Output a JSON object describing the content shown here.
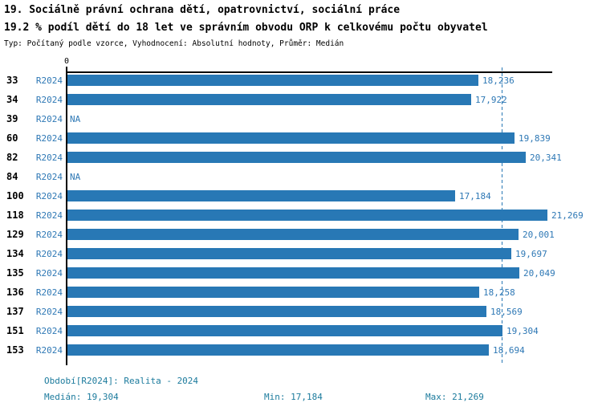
{
  "header": {
    "title_line1": "19. Sociálně právní ochrana dětí, opatrovnictví, sociální práce",
    "title_line2": "19.2 % podíl dětí do 18 let ve správním obvodu ORP k celkovému počtu obyvatel",
    "subtitle": "Typ: Počítaný podle vzorce, Vyhodnocení: Absolutní hodnoty, Průměr: Medián"
  },
  "chart_data": {
    "type": "bar",
    "orientation": "horizontal",
    "series_label": "R2024",
    "categories": [
      "33",
      "34",
      "39",
      "60",
      "82",
      "84",
      "100",
      "118",
      "129",
      "134",
      "135",
      "136",
      "137",
      "151",
      "153"
    ],
    "values": [
      18236,
      17922,
      null,
      19839,
      20341,
      null,
      17184,
      21269,
      20001,
      19697,
      20049,
      18258,
      18569,
      19304,
      18694
    ],
    "value_labels": [
      "18,236",
      "17,922",
      "NA",
      "19,839",
      "20,341",
      "NA",
      "17,184",
      "21,269",
      "20,001",
      "19,697",
      "20,049",
      "18,258",
      "18,569",
      "19,304",
      "18,694"
    ],
    "na_label": "NA",
    "median": 19304,
    "xlim": [
      0,
      21269
    ],
    "axis": {
      "zero_label": "0"
    },
    "legend_position": "none",
    "grid": false,
    "bar_color": "#2878b5",
    "label_color": "#2e78b5",
    "median_line_color": "#2878b5",
    "axis_color": "#000000"
  },
  "footer": {
    "period_label": "Období[R2024]: Realita - 2024",
    "median_label": "Medián: 19,304",
    "min_label": "Min: 17,184",
    "max_label": "Max: 21,269",
    "text_color": "#1c7b9d"
  }
}
